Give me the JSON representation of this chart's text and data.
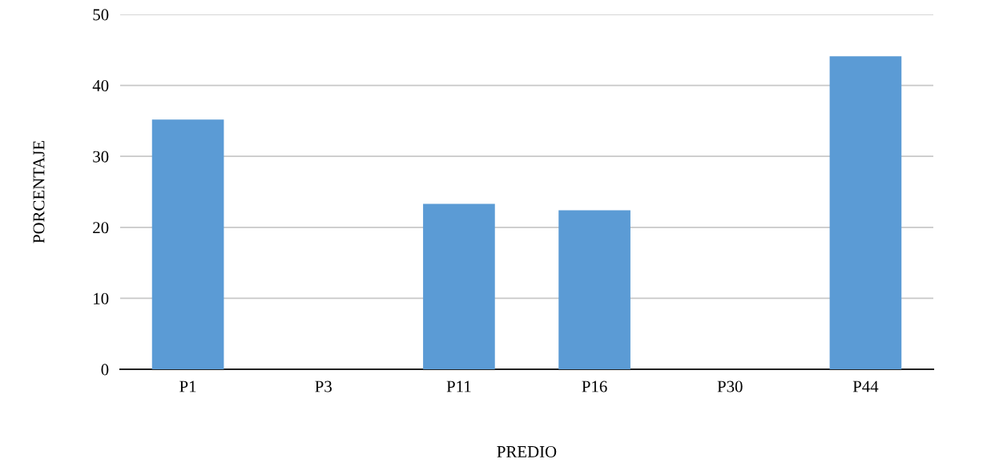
{
  "chart_data": {
    "type": "bar",
    "xlabel": "PREDIO",
    "ylabel": "PORCENTAJE",
    "categories": [
      "P1",
      "P3",
      "P11",
      "P16",
      "P30",
      "P44"
    ],
    "values": [
      35.2,
      0,
      23.3,
      22.4,
      0,
      44.1
    ],
    "color": "#5b9bd5",
    "ylim": [
      0,
      50
    ],
    "yticks": [
      0,
      10,
      20,
      30,
      40,
      50
    ],
    "grid": "y"
  }
}
